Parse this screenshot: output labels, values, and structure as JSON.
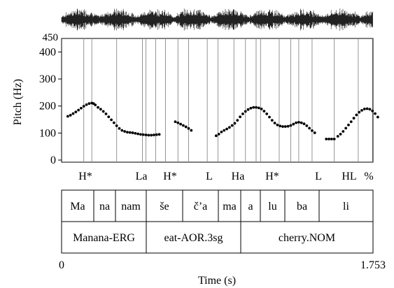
{
  "chart_data": {
    "type": "scatter",
    "title": "",
    "xlabel": "Time (s)",
    "ylabel": "Pitch (Hz)",
    "xlim": [
      0,
      1.753
    ],
    "ylim": [
      0,
      450
    ],
    "x_tick_labels": [
      "0",
      "1.753"
    ],
    "y_tick_labels": [
      "0",
      "100",
      "200",
      "300",
      "400"
    ],
    "waveform_top_label": "450",
    "grid": false,
    "series": [
      {
        "points": [
          [
            0.035,
            162
          ],
          [
            0.05,
            166
          ],
          [
            0.065,
            172
          ],
          [
            0.08,
            178
          ],
          [
            0.095,
            185
          ],
          [
            0.11,
            192
          ],
          [
            0.125,
            199
          ],
          [
            0.14,
            205
          ],
          [
            0.155,
            209
          ],
          [
            0.17,
            211
          ],
          [
            0.18,
            209
          ],
          [
            0.19,
            204
          ],
          [
            0.205,
            195
          ],
          [
            0.22,
            188
          ],
          [
            0.235,
            180
          ],
          [
            0.25,
            171
          ],
          [
            0.265,
            160
          ],
          [
            0.28,
            149
          ],
          [
            0.295,
            138
          ],
          [
            0.31,
            127
          ],
          [
            0.325,
            117
          ],
          [
            0.34,
            110
          ],
          [
            0.355,
            106
          ],
          [
            0.37,
            103
          ],
          [
            0.385,
            102
          ],
          [
            0.4,
            101
          ],
          [
            0.415,
            99
          ],
          [
            0.43,
            97
          ],
          [
            0.445,
            95
          ],
          [
            0.46,
            94
          ],
          [
            0.475,
            93
          ],
          [
            0.49,
            92
          ],
          [
            0.505,
            92
          ],
          [
            0.52,
            93
          ],
          [
            0.535,
            94
          ],
          [
            0.55,
            95
          ],
          [
            0.64,
            142
          ],
          [
            0.655,
            138
          ],
          [
            0.67,
            133
          ],
          [
            0.685,
            128
          ],
          [
            0.7,
            123
          ],
          [
            0.715,
            117
          ],
          [
            0.73,
            110
          ],
          [
            0.87,
            90
          ],
          [
            0.885,
            96
          ],
          [
            0.9,
            104
          ],
          [
            0.915,
            110
          ],
          [
            0.93,
            115
          ],
          [
            0.945,
            121
          ],
          [
            0.96,
            128
          ],
          [
            0.975,
            136
          ],
          [
            0.99,
            147
          ],
          [
            1.005,
            160
          ],
          [
            1.02,
            171
          ],
          [
            1.035,
            180
          ],
          [
            1.05,
            187
          ],
          [
            1.065,
            192
          ],
          [
            1.08,
            195
          ],
          [
            1.095,
            195
          ],
          [
            1.11,
            193
          ],
          [
            1.125,
            189
          ],
          [
            1.14,
            181
          ],
          [
            1.155,
            171
          ],
          [
            1.17,
            159
          ],
          [
            1.185,
            147
          ],
          [
            1.2,
            137
          ],
          [
            1.215,
            130
          ],
          [
            1.23,
            126
          ],
          [
            1.245,
            124
          ],
          [
            1.26,
            124
          ],
          [
            1.275,
            125
          ],
          [
            1.29,
            128
          ],
          [
            1.305,
            133
          ],
          [
            1.32,
            138
          ],
          [
            1.335,
            140
          ],
          [
            1.35,
            138
          ],
          [
            1.365,
            134
          ],
          [
            1.38,
            127
          ],
          [
            1.395,
            118
          ],
          [
            1.41,
            109
          ],
          [
            1.425,
            101
          ],
          [
            1.49,
            78
          ],
          [
            1.505,
            78
          ],
          [
            1.52,
            78
          ],
          [
            1.535,
            78
          ],
          [
            1.555,
            88
          ],
          [
            1.57,
            96
          ],
          [
            1.585,
            106
          ],
          [
            1.6,
            118
          ],
          [
            1.615,
            130
          ],
          [
            1.63,
            142
          ],
          [
            1.645,
            155
          ],
          [
            1.66,
            167
          ],
          [
            1.675,
            177
          ],
          [
            1.69,
            184
          ],
          [
            1.705,
            189
          ],
          [
            1.72,
            190
          ],
          [
            1.735,
            188
          ],
          [
            1.75,
            182
          ],
          [
            1.765,
            172
          ],
          [
            1.78,
            159
          ]
        ]
      }
    ],
    "annotation_tiers": [
      {
        "name": "tones",
        "items": [
          {
            "label": "H*",
            "t": 0.14,
            "align": "center"
          },
          {
            "label": "La",
            "t": 0.49,
            "align": "center"
          },
          {
            "label": "H*",
            "t": 0.6,
            "align": "center"
          },
          {
            "label": "L",
            "t": 0.875,
            "align": "center"
          },
          {
            "label": "Ha",
            "t": 1.07,
            "align": "center"
          },
          {
            "label": "H*",
            "t": 1.31,
            "align": "center"
          },
          {
            "label": "L",
            "t": 1.525,
            "align": "center"
          },
          {
            "label": "HL",
            "t": 1.715,
            "align": "center"
          },
          {
            "label": "%",
            "t": 1.79,
            "align": "center"
          }
        ]
      },
      {
        "name": "syllables",
        "items": [
          "Ma",
          "na",
          "nam",
          "še",
          "č’a",
          "ma",
          "a",
          "lu",
          "ba",
          "li"
        ]
      },
      {
        "name": "words",
        "items": [
          "Manana-ERG",
          "eat-AOR.3sg",
          "cherry.NOM"
        ]
      }
    ]
  }
}
